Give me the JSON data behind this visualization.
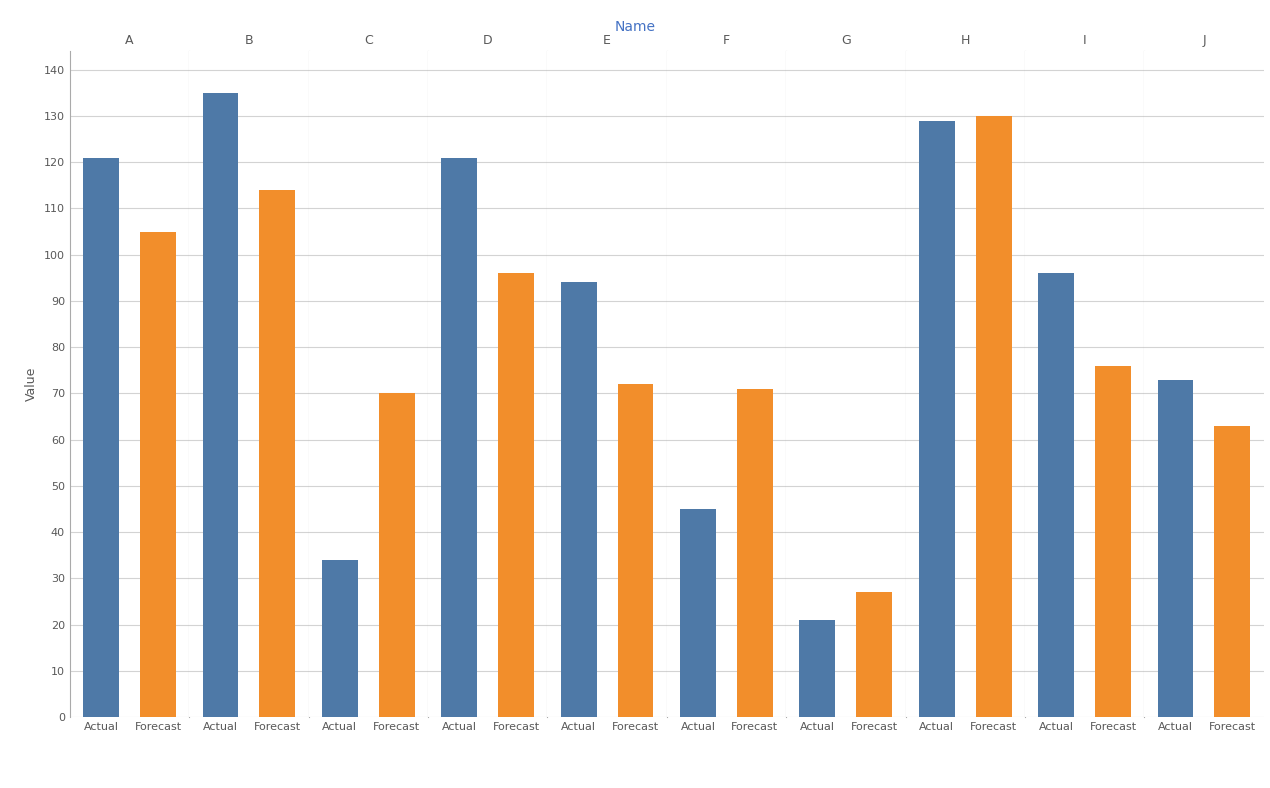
{
  "title": "Name",
  "ylabel": "Value",
  "categories": [
    "A",
    "B",
    "C",
    "D",
    "E",
    "F",
    "G",
    "H",
    "I",
    "J"
  ],
  "actual_values": [
    121,
    135,
    34,
    121,
    94,
    45,
    21,
    129,
    96,
    73
  ],
  "forecast_values": [
    105,
    114,
    70,
    96,
    72,
    71,
    27,
    130,
    76,
    63
  ],
  "actual_color": "#4e79a7",
  "forecast_color": "#f28e2b",
  "background_color": "#ffffff",
  "grid_color": "#d3d3d3",
  "title_color": "#4472c4",
  "axis_label_color": "#595959",
  "tick_label_color": "#595959",
  "category_label_color": "#595959",
  "sep_line_color": "#aaaaaa",
  "ylim": [
    0,
    144
  ],
  "yticks": [
    0,
    10,
    20,
    30,
    40,
    50,
    60,
    70,
    80,
    90,
    100,
    110,
    120,
    130,
    140
  ],
  "bar_width": 0.63,
  "title_fontsize": 10,
  "axis_fontsize": 9,
  "tick_fontsize": 8,
  "category_fontsize": 9
}
